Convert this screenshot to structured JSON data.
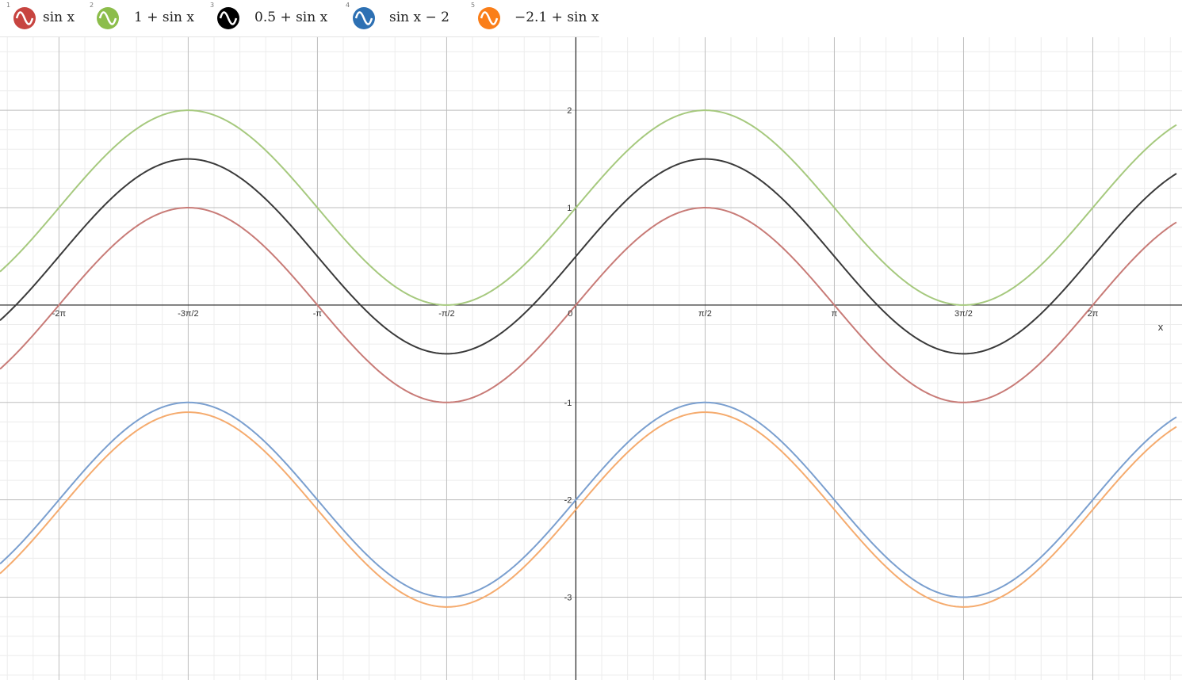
{
  "expressions": [
    {
      "index": "1",
      "latex": "sin x",
      "color": "#c74440",
      "icon": "sine-wave-icon"
    },
    {
      "index": "2",
      "latex": "1 + sin x",
      "color": "#8cbd4b",
      "icon": "sine-wave-icon"
    },
    {
      "index": "3",
      "latex": "0.5 + sin x",
      "color": "#000000",
      "icon": "sine-wave-icon"
    },
    {
      "index": "4",
      "latex": "sin x − 2",
      "color": "#2d70b3",
      "icon": "sine-wave-icon"
    },
    {
      "index": "5",
      "latex": "−2.1 + sin x",
      "color": "#fa7e19",
      "icon": "sine-wave-icon"
    }
  ],
  "chart_data": {
    "type": "line",
    "xlabel": "x",
    "ylabel": "",
    "xlim": [
      -7.0,
      7.3
    ],
    "ylim": [
      -3.85,
      2.75
    ],
    "grid": true,
    "x_ticks": [
      {
        "value": -6.283185,
        "label": "-2π"
      },
      {
        "value": -4.712389,
        "label": "-3π/2"
      },
      {
        "value": -3.141593,
        "label": "-π"
      },
      {
        "value": -1.570796,
        "label": "-π/2"
      },
      {
        "value": 0,
        "label": "0"
      },
      {
        "value": 1.570796,
        "label": "π/2"
      },
      {
        "value": 3.141593,
        "label": "π"
      },
      {
        "value": 4.712389,
        "label": "3π/2"
      },
      {
        "value": 6.283185,
        "label": "2π"
      }
    ],
    "y_ticks": [
      {
        "value": 2,
        "label": "2"
      },
      {
        "value": 1,
        "label": "1"
      },
      {
        "value": -1,
        "label": "-1"
      },
      {
        "value": -2,
        "label": "-2"
      },
      {
        "value": -3,
        "label": "-3"
      }
    ],
    "series": [
      {
        "name": "sin x",
        "offset": 0,
        "amplitude": 1,
        "color": "#c87b77"
      },
      {
        "name": "1 + sin x",
        "offset": 1,
        "amplitude": 1,
        "color": "#a6c97e"
      },
      {
        "name": "0.5 + sin x",
        "offset": 0.5,
        "amplitude": 1,
        "color": "#3a3a3a"
      },
      {
        "name": "sin x − 2",
        "offset": -2,
        "amplitude": 1,
        "color": "#7a9fcf"
      },
      {
        "name": "−2.1 + sin x",
        "offset": -2.1,
        "amplitude": 1,
        "color": "#f5ab6e"
      }
    ]
  }
}
